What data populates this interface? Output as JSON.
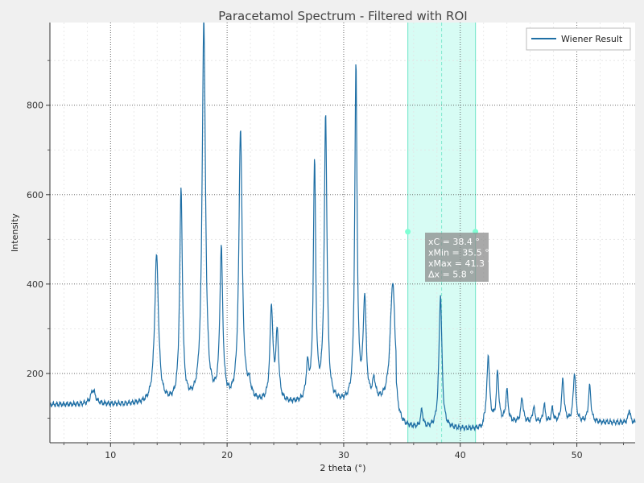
{
  "chart_data": {
    "type": "line",
    "title": "Paracetamol Spectrum - Filtered with ROI",
    "xlabel": "2 theta (°)",
    "ylabel": "Intensity",
    "xlim": [
      4.8,
      55
    ],
    "ylim": [
      45,
      985
    ],
    "x_ticks": [
      10,
      20,
      30,
      40,
      50
    ],
    "y_ticks": [
      200,
      400,
      600,
      800
    ],
    "grid": true,
    "legend_position": "top-right",
    "colors": {
      "line": "#1f6fa5",
      "roi_fill": "#c9fbf0",
      "roi_edge": "#7fe9cf",
      "marker": "#7fffd4",
      "background": "#f0f0f0",
      "plot_bg": "#ffffff"
    },
    "series": [
      {
        "name": "Wiener Result",
        "baseline": 130,
        "peaks": [
          [
            8.5,
            32,
            0.25
          ],
          [
            13.95,
            330,
            0.2
          ],
          [
            16.05,
            475,
            0.14
          ],
          [
            18.0,
            855,
            0.17
          ],
          [
            19.5,
            335,
            0.15
          ],
          [
            21.15,
            610,
            0.17
          ],
          [
            21.9,
            30,
            0.2
          ],
          [
            23.8,
            210,
            0.15
          ],
          [
            24.3,
            150,
            0.15
          ],
          [
            26.9,
            75,
            0.15
          ],
          [
            27.5,
            530,
            0.12
          ],
          [
            28.45,
            640,
            0.14
          ],
          [
            31.05,
            750,
            0.12
          ],
          [
            31.8,
            228,
            0.15
          ],
          [
            32.6,
            45,
            0.15
          ],
          [
            34.2,
            270,
            0.25
          ],
          [
            36.7,
            38,
            0.12
          ],
          [
            38.3,
            300,
            0.15
          ],
          [
            42.4,
            150,
            0.13
          ],
          [
            43.2,
            110,
            0.12
          ],
          [
            44.0,
            70,
            0.12
          ],
          [
            45.3,
            55,
            0.12
          ],
          [
            46.3,
            35,
            0.1
          ],
          [
            47.2,
            40,
            0.1
          ],
          [
            47.9,
            30,
            0.1
          ],
          [
            48.8,
            95,
            0.13
          ],
          [
            49.8,
            110,
            0.13
          ],
          [
            51.1,
            80,
            0.13
          ],
          [
            54.5,
            30,
            0.1
          ]
        ]
      }
    ],
    "roi": {
      "x_min": 35.5,
      "x_max": 41.3,
      "x_center": 38.4,
      "marker_y": 517,
      "labels": [
        "xC = 38.4 °",
        "xMin = 35.5 °",
        "xMax = 41.3 °",
        "Δx = 5.8 °"
      ]
    }
  }
}
